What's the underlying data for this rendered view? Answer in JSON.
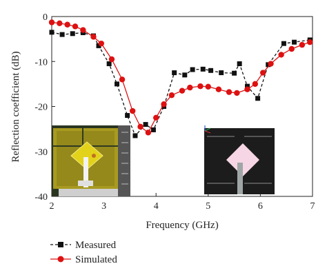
{
  "chart_data": {
    "type": "line",
    "xlabel": "Frequency (GHz)",
    "ylabel": "Reflection coefficient (dB)",
    "xlim": [
      2,
      7
    ],
    "ylim": [
      -40,
      0
    ],
    "xticks": [
      "2",
      "3",
      "4",
      "5",
      "6",
      "7"
    ],
    "yticks": [
      "0",
      "-10",
      "-20",
      "-30",
      "-40"
    ],
    "grid": false,
    "legend_position": "bottom-left",
    "series": [
      {
        "name": "Measured",
        "color": "#111111",
        "marker": "square",
        "line_style": "dashed",
        "x": [
          2.0,
          2.2,
          2.4,
          2.6,
          2.8,
          2.9,
          3.1,
          3.25,
          3.45,
          3.6,
          3.8,
          3.95,
          4.15,
          4.35,
          4.55,
          4.7,
          4.9,
          5.05,
          5.25,
          5.5,
          5.6,
          5.75,
          5.95,
          6.15,
          6.45,
          6.65,
          6.95
        ],
        "y": [
          -3.5,
          -4.0,
          -3.8,
          -3.6,
          -4.3,
          -6.5,
          -10.5,
          -15.0,
          -22.0,
          -26.5,
          -24.0,
          -25.2,
          -20.0,
          -12.5,
          -13.0,
          -11.8,
          -11.7,
          -12.0,
          -12.5,
          -12.6,
          -10.5,
          -15.5,
          -18.2,
          -10.7,
          -6.0,
          -5.7,
          -5.2
        ]
      },
      {
        "name": "Simulated",
        "color": "#dd1111",
        "marker": "circle",
        "line_style": "solid",
        "x": [
          2.0,
          2.15,
          2.3,
          2.45,
          2.6,
          2.8,
          2.95,
          3.15,
          3.35,
          3.55,
          3.7,
          3.85,
          4.0,
          4.15,
          4.3,
          4.5,
          4.65,
          4.85,
          5.0,
          5.2,
          5.4,
          5.55,
          5.75,
          5.9,
          6.05,
          6.2,
          6.4,
          6.6,
          6.8,
          6.95
        ],
        "y": [
          -1.3,
          -1.5,
          -1.8,
          -2.2,
          -3.0,
          -4.5,
          -6.0,
          -9.5,
          -14.0,
          -21.0,
          -24.5,
          -25.8,
          -22.5,
          -19.5,
          -17.5,
          -16.5,
          -15.8,
          -15.5,
          -15.6,
          -16.2,
          -16.8,
          -17.0,
          -16.2,
          -15.0,
          -12.5,
          -10.5,
          -8.5,
          -7.2,
          -6.3,
          -5.7
        ]
      }
    ]
  }
}
